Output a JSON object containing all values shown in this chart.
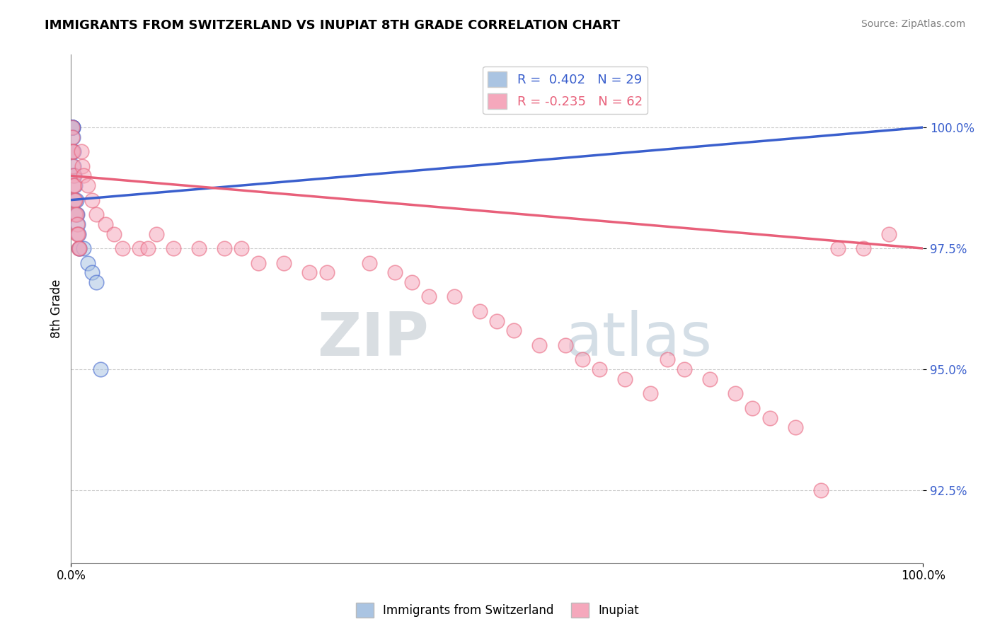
{
  "title": "IMMIGRANTS FROM SWITZERLAND VS INUPIAT 8TH GRADE CORRELATION CHART",
  "source_text": "Source: ZipAtlas.com",
  "ylabel": "8th Grade",
  "xlim": [
    0.0,
    1.0
  ],
  "ylim": [
    91.0,
    101.5
  ],
  "ytick_labels": [
    "92.5%",
    "95.0%",
    "97.5%",
    "100.0%"
  ],
  "ytick_values": [
    92.5,
    95.0,
    97.5,
    100.0
  ],
  "xtick_labels": [
    "0.0%",
    "100.0%"
  ],
  "xtick_values": [
    0.0,
    1.0
  ],
  "blue_R": 0.402,
  "blue_N": 29,
  "pink_R": -0.235,
  "pink_N": 62,
  "blue_color": "#aac4e2",
  "pink_color": "#f5a8bc",
  "blue_line_color": "#3a5fcd",
  "pink_line_color": "#e8607a",
  "legend_blue_label": "Immigrants from Switzerland",
  "legend_pink_label": "Inupiat",
  "watermark_zip": "ZIP",
  "watermark_atlas": "atlas",
  "blue_scatter_x": [
    0.001,
    0.001,
    0.001,
    0.001,
    0.001,
    0.001,
    0.001,
    0.002,
    0.002,
    0.002,
    0.002,
    0.003,
    0.003,
    0.003,
    0.004,
    0.005,
    0.005,
    0.006,
    0.006,
    0.007,
    0.008,
    0.009,
    0.01,
    0.01,
    0.015,
    0.02,
    0.025,
    0.03,
    0.035
  ],
  "blue_scatter_y": [
    100.0,
    100.0,
    100.0,
    100.0,
    100.0,
    100.0,
    100.0,
    100.0,
    100.0,
    99.8,
    99.5,
    99.5,
    99.2,
    99.0,
    99.0,
    98.8,
    98.5,
    98.5,
    98.2,
    98.2,
    98.0,
    97.8,
    97.5,
    97.5,
    97.5,
    97.2,
    97.0,
    96.8,
    95.0
  ],
  "pink_scatter_x": [
    0.001,
    0.001,
    0.001,
    0.002,
    0.002,
    0.003,
    0.003,
    0.004,
    0.004,
    0.005,
    0.005,
    0.006,
    0.007,
    0.007,
    0.008,
    0.009,
    0.01,
    0.012,
    0.013,
    0.015,
    0.02,
    0.025,
    0.03,
    0.04,
    0.05,
    0.06,
    0.08,
    0.09,
    0.1,
    0.12,
    0.15,
    0.18,
    0.2,
    0.22,
    0.25,
    0.28,
    0.3,
    0.35,
    0.38,
    0.4,
    0.42,
    0.45,
    0.48,
    0.5,
    0.52,
    0.55,
    0.58,
    0.6,
    0.62,
    0.65,
    0.68,
    0.7,
    0.72,
    0.75,
    0.78,
    0.8,
    0.82,
    0.85,
    0.88,
    0.9,
    0.93,
    0.96
  ],
  "pink_scatter_y": [
    100.0,
    99.8,
    99.5,
    99.5,
    99.2,
    99.0,
    98.8,
    98.8,
    98.5,
    98.5,
    98.2,
    98.2,
    98.0,
    97.8,
    97.8,
    97.5,
    97.5,
    99.5,
    99.2,
    99.0,
    98.8,
    98.5,
    98.2,
    98.0,
    97.8,
    97.5,
    97.5,
    97.5,
    97.8,
    97.5,
    97.5,
    97.5,
    97.5,
    97.2,
    97.2,
    97.0,
    97.0,
    97.2,
    97.0,
    96.8,
    96.5,
    96.5,
    96.2,
    96.0,
    95.8,
    95.5,
    95.5,
    95.2,
    95.0,
    94.8,
    94.5,
    95.2,
    95.0,
    94.8,
    94.5,
    94.2,
    94.0,
    93.8,
    92.5,
    97.5,
    97.5,
    97.8
  ],
  "blue_trend_x": [
    0.0,
    1.0
  ],
  "blue_trend_y": [
    98.5,
    100.0
  ],
  "pink_trend_x": [
    0.0,
    1.0
  ],
  "pink_trend_y": [
    99.0,
    97.5
  ],
  "background_color": "#ffffff",
  "grid_color": "#cccccc"
}
